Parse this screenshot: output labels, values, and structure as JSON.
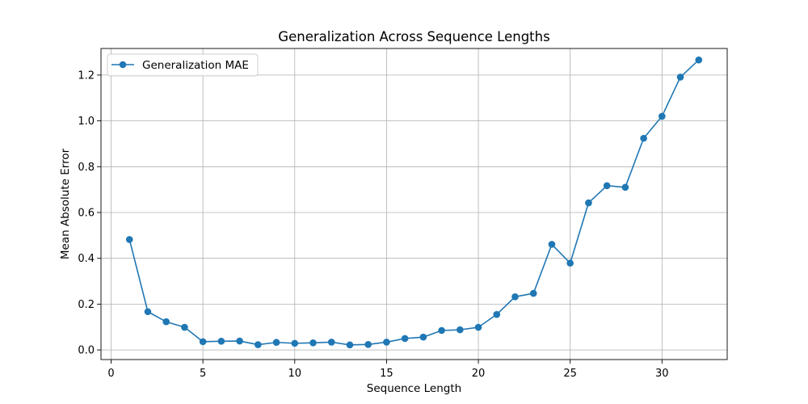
{
  "chart_data": {
    "type": "line",
    "title": "Generalization Across Sequence Lengths",
    "xlabel": "Sequence Length",
    "ylabel": "Mean Absolute Error",
    "xlim": [
      -0.55,
      33.55
    ],
    "ylim": [
      -0.042,
      1.316
    ],
    "xticks": [
      0,
      5,
      10,
      15,
      20,
      25,
      30
    ],
    "yticks": [
      0.0,
      0.2,
      0.4,
      0.6,
      0.8,
      1.0,
      1.2
    ],
    "ytick_labels": [
      "0.0",
      "0.2",
      "0.4",
      "0.6",
      "0.8",
      "1.0",
      "1.2"
    ],
    "grid": true,
    "legend_position": "top-left",
    "series": [
      {
        "name": "Generalization MAE",
        "color": "#1f77b4",
        "marker": "circle",
        "x": [
          1,
          2,
          3,
          4,
          5,
          6,
          7,
          8,
          9,
          10,
          11,
          12,
          13,
          14,
          15,
          16,
          17,
          18,
          19,
          20,
          21,
          22,
          23,
          24,
          25,
          26,
          27,
          28,
          29,
          30,
          31,
          32
        ],
        "values": [
          0.482,
          0.167,
          0.123,
          0.099,
          0.036,
          0.038,
          0.039,
          0.023,
          0.033,
          0.029,
          0.031,
          0.034,
          0.022,
          0.024,
          0.034,
          0.05,
          0.056,
          0.085,
          0.088,
          0.099,
          0.155,
          0.232,
          0.247,
          0.461,
          0.379,
          0.642,
          0.717,
          0.71,
          0.924,
          1.02,
          1.191,
          1.266
        ]
      }
    ]
  }
}
